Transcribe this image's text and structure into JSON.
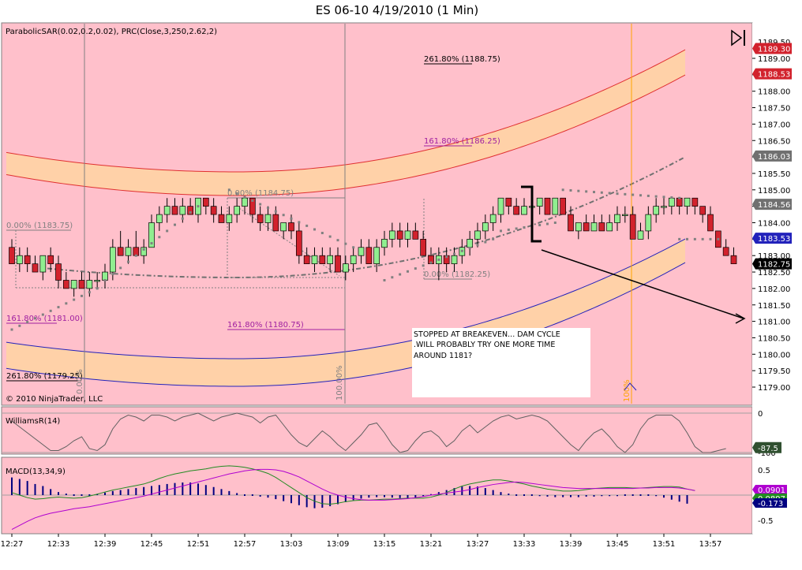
{
  "title": "ES 06-10  4/19/2010 (1 Min)",
  "colors": {
    "panel_bg": "#ffc0cb",
    "band_fill": "#ffd1a8",
    "up_candle": "#90ee90",
    "down_candle": "#d2222d",
    "sar": "#808080",
    "regression": "#707070",
    "red_channel": "#e03030",
    "blue_channel": "#2222bb",
    "williams": "#606060",
    "macd_line": "#228b22",
    "macd_signal": "#b000d0",
    "macd_hist": "#000080",
    "orange_marker": "#ffa500"
  },
  "price_panel": {
    "indicator_label": "ParabolicSAR(0.02,0.2,0.02), PRC(Close,3,250,2.62,2)",
    "copyright": "© 2010 NinjaTrader, LLC",
    "note_lines": [
      "STOPPED AT BREAKEVEN... DAM CYCLE",
      ".WILL PROBABLY TRY ONE MORE TIME",
      "AROUND 1181?"
    ],
    "fib_labels": {
      "f_261_top": "261.80% (1188.75)",
      "f_161_top": "161.80% (1186.25)",
      "f_0_mid": "0.00% (1184.75)",
      "f_0_left": "0.00% (1183.75)",
      "f_0_right": "0.00% (1182.25)",
      "f_161_left": "161.80% (1181.00)",
      "f_161_mid": "161.80% (1180.75)",
      "f_261_left": "261.80% (1179.25)",
      "f_100_vert": "100.00%",
      "f_0_vert": "0.00%",
      "f_orange_vert": "100%"
    },
    "y_ticks": [
      "1189.00",
      "1188.50",
      "1188.00",
      "1187.50",
      "1187.00",
      "1186.50",
      "1186.00",
      "1185.50",
      "1185.00",
      "1184.50",
      "1184.00",
      "1183.50",
      "1183.00",
      "1182.50",
      "1182.00",
      "1181.50",
      "1181.00",
      "1180.50",
      "1180.00",
      "1179.50",
      "1179.00"
    ],
    "y_top_partial": "1189.50",
    "price_tags": [
      {
        "text": "1189.30",
        "value": 1189.3,
        "bg": "#d2222d"
      },
      {
        "text": "1188.53",
        "value": 1188.53,
        "bg": "#d2222d"
      },
      {
        "text": "1186.03",
        "value": 1186.03,
        "bg": "#707070"
      },
      {
        "text": "1184.56",
        "value": 1184.56,
        "bg": "#707070"
      },
      {
        "text": "1183.53",
        "value": 1183.53,
        "bg": "#2222bb"
      },
      {
        "text": "1182.75",
        "value": 1182.75,
        "bg": "#000000"
      }
    ]
  },
  "williams_panel": {
    "label": "WilliamsR(14)",
    "ticks": [
      "0",
      "-100"
    ],
    "tag": "-87.5"
  },
  "macd_panel": {
    "label": "MACD(13,34,9)",
    "ticks": [
      "0.5",
      "-0.5"
    ],
    "tags": [
      {
        "text": "0.0901",
        "bg": "#b000d0"
      },
      {
        "text": "0.0897",
        "bg": "#228b22"
      },
      {
        "text": "-0.173",
        "bg": "#000080"
      }
    ]
  },
  "x_ticks": [
    "12:27",
    "12:33",
    "12:39",
    "12:45",
    "12:51",
    "12:57",
    "13:03",
    "13:09",
    "13:15",
    "13:21",
    "13:27",
    "13:33",
    "13:39",
    "13:45",
    "13:51",
    "13:57"
  ],
  "chart_data": {
    "type": "candlestick",
    "title": "ES 06-10  4/19/2010 (1 Min)",
    "x_start": "12:27",
    "interval_minutes": 1,
    "ohlc": [
      [
        1183.25,
        1183.5,
        1182.75,
        1182.75
      ],
      [
        1182.75,
        1183.25,
        1182.5,
        1183.0
      ],
      [
        1183.0,
        1183.25,
        1182.5,
        1182.75
      ],
      [
        1182.75,
        1183.0,
        1182.5,
        1182.5
      ],
      [
        1182.5,
        1183.0,
        1182.25,
        1183.0
      ],
      [
        1183.0,
        1183.25,
        1182.5,
        1182.75
      ],
      [
        1182.75,
        1183.0,
        1182.0,
        1182.25
      ],
      [
        1182.25,
        1182.5,
        1182.0,
        1182.0
      ],
      [
        1182.0,
        1182.25,
        1181.75,
        1182.25
      ],
      [
        1182.25,
        1182.5,
        1182.0,
        1182.0
      ],
      [
        1182.0,
        1182.5,
        1181.75,
        1182.25
      ],
      [
        1182.25,
        1182.5,
        1182.0,
        1182.25
      ],
      [
        1182.25,
        1182.75,
        1182.0,
        1182.5
      ],
      [
        1182.5,
        1183.5,
        1182.25,
        1183.25
      ],
      [
        1183.25,
        1183.75,
        1183.0,
        1183.0
      ],
      [
        1183.0,
        1183.5,
        1182.75,
        1183.25
      ],
      [
        1183.25,
        1183.75,
        1183.0,
        1183.0
      ],
      [
        1183.0,
        1183.5,
        1182.75,
        1183.25
      ],
      [
        1183.25,
        1184.25,
        1183.25,
        1184.0
      ],
      [
        1184.0,
        1184.5,
        1183.75,
        1184.25
      ],
      [
        1184.25,
        1184.75,
        1184.0,
        1184.5
      ],
      [
        1184.5,
        1184.75,
        1184.25,
        1184.25
      ],
      [
        1184.25,
        1184.75,
        1184.0,
        1184.5
      ],
      [
        1184.5,
        1184.75,
        1184.25,
        1184.25
      ],
      [
        1184.25,
        1184.75,
        1184.0,
        1184.75
      ],
      [
        1184.75,
        1184.75,
        1184.25,
        1184.5
      ],
      [
        1184.5,
        1184.75,
        1184.0,
        1184.25
      ],
      [
        1184.25,
        1184.5,
        1184.0,
        1184.0
      ],
      [
        1184.0,
        1184.5,
        1183.75,
        1184.25
      ],
      [
        1184.25,
        1184.75,
        1184.0,
        1184.5
      ],
      [
        1184.5,
        1184.75,
        1184.25,
        1184.75
      ],
      [
        1184.75,
        1184.75,
        1184.0,
        1184.25
      ],
      [
        1184.25,
        1184.5,
        1183.75,
        1184.0
      ],
      [
        1184.0,
        1184.5,
        1183.75,
        1184.25
      ],
      [
        1184.25,
        1184.5,
        1183.75,
        1183.75
      ],
      [
        1183.75,
        1184.0,
        1183.5,
        1184.0
      ],
      [
        1184.0,
        1184.25,
        1183.5,
        1183.75
      ],
      [
        1183.75,
        1184.0,
        1182.75,
        1183.0
      ],
      [
        1183.0,
        1183.25,
        1182.75,
        1182.75
      ],
      [
        1182.75,
        1183.25,
        1182.5,
        1183.0
      ],
      [
        1183.0,
        1183.25,
        1182.75,
        1182.75
      ],
      [
        1182.75,
        1183.25,
        1182.5,
        1183.0
      ],
      [
        1183.0,
        1183.25,
        1182.5,
        1182.5
      ],
      [
        1182.5,
        1183.0,
        1182.25,
        1182.75
      ],
      [
        1182.75,
        1183.25,
        1182.5,
        1183.0
      ],
      [
        1183.0,
        1183.5,
        1182.75,
        1183.25
      ],
      [
        1183.25,
        1183.5,
        1182.75,
        1182.75
      ],
      [
        1182.75,
        1183.5,
        1182.5,
        1183.25
      ],
      [
        1183.25,
        1183.75,
        1183.0,
        1183.5
      ],
      [
        1183.5,
        1184.0,
        1183.25,
        1183.75
      ],
      [
        1183.75,
        1184.0,
        1183.25,
        1183.5
      ],
      [
        1183.5,
        1184.0,
        1183.25,
        1183.75
      ],
      [
        1183.75,
        1184.0,
        1183.5,
        1183.5
      ],
      [
        1183.5,
        1183.75,
        1183.0,
        1183.0
      ],
      [
        1183.0,
        1183.25,
        1182.75,
        1182.75
      ],
      [
        1182.75,
        1183.25,
        1182.25,
        1183.0
      ],
      [
        1183.0,
        1183.25,
        1182.5,
        1182.75
      ],
      [
        1182.75,
        1183.25,
        1182.5,
        1183.0
      ],
      [
        1183.0,
        1183.5,
        1182.75,
        1183.25
      ],
      [
        1183.25,
        1183.75,
        1183.0,
        1183.5
      ],
      [
        1183.5,
        1184.0,
        1183.25,
        1183.75
      ],
      [
        1183.75,
        1184.25,
        1183.5,
        1184.0
      ],
      [
        1184.0,
        1184.5,
        1183.75,
        1184.25
      ],
      [
        1184.25,
        1184.75,
        1184.0,
        1184.75
      ],
      [
        1184.75,
        1184.75,
        1184.25,
        1184.5
      ],
      [
        1184.5,
        1184.75,
        1184.25,
        1184.25
      ],
      [
        1184.25,
        1184.75,
        1184.25,
        1184.5
      ],
      [
        1184.5,
        1184.75,
        1184.25,
        1184.5
      ],
      [
        1184.5,
        1184.75,
        1184.25,
        1184.75
      ],
      [
        1184.75,
        1184.75,
        1184.25,
        1184.25
      ],
      [
        1184.25,
        1184.75,
        1184.25,
        1184.75
      ],
      [
        1184.75,
        1184.75,
        1184.25,
        1184.25
      ],
      [
        1184.25,
        1184.5,
        1183.75,
        1183.75
      ],
      [
        1183.75,
        1184.0,
        1183.5,
        1184.0
      ],
      [
        1184.0,
        1184.25,
        1183.75,
        1183.75
      ],
      [
        1183.75,
        1184.25,
        1183.75,
        1184.0
      ],
      [
        1184.0,
        1184.25,
        1183.75,
        1183.75
      ],
      [
        1183.75,
        1184.25,
        1183.75,
        1184.0
      ],
      [
        1184.0,
        1184.5,
        1183.75,
        1184.25
      ],
      [
        1184.25,
        1184.5,
        1184.0,
        1184.25
      ],
      [
        1184.25,
        1184.5,
        1183.5,
        1183.5
      ],
      [
        1183.5,
        1184.0,
        1183.5,
        1183.75
      ],
      [
        1183.75,
        1184.5,
        1183.5,
        1184.25
      ],
      [
        1184.25,
        1184.75,
        1184.0,
        1184.5
      ],
      [
        1184.5,
        1184.75,
        1184.25,
        1184.5
      ],
      [
        1184.5,
        1184.75,
        1184.25,
        1184.75
      ],
      [
        1184.75,
        1184.75,
        1184.25,
        1184.5
      ],
      [
        1184.5,
        1184.75,
        1184.25,
        1184.75
      ],
      [
        1184.75,
        1184.75,
        1184.25,
        1184.5
      ],
      [
        1184.5,
        1184.5,
        1184.0,
        1184.25
      ],
      [
        1184.25,
        1184.5,
        1183.75,
        1183.75
      ],
      [
        1183.75,
        1183.75,
        1183.25,
        1183.25
      ],
      [
        1183.25,
        1183.5,
        1183.0,
        1183.0
      ],
      [
        1183.0,
        1183.25,
        1182.75,
        1182.75
      ]
    ],
    "parabolic_sar": [],
    "x_axis_ticks": [
      "12:27",
      "12:33",
      "12:39",
      "12:45",
      "12:51",
      "12:57",
      "13:03",
      "13:09",
      "13:15",
      "13:21",
      "13:27",
      "13:33",
      "13:39",
      "13:45",
      "13:51",
      "13:57"
    ],
    "ylim": [
      1178.75,
      1189.5
    ]
  }
}
